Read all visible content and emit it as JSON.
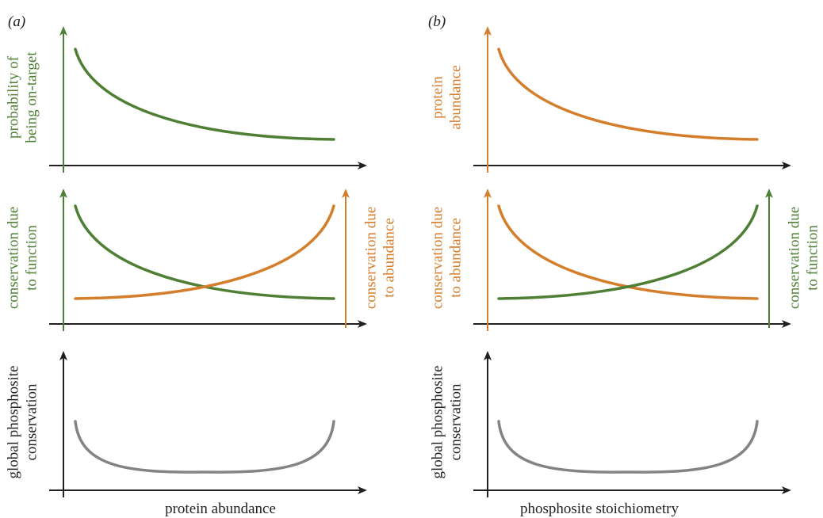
{
  "colors": {
    "green": "#4e7f35",
    "orange": "#d47e2c",
    "gray": "#838383",
    "black": "#231f20"
  },
  "panels": [
    {
      "id": "a",
      "label": "(a)",
      "rows": [
        {
          "y_left_lines": [
            "probability of",
            "being on-target"
          ],
          "y_left_color": "green",
          "curves": [
            {
              "shape": "decreasing",
              "color": "green"
            }
          ]
        },
        {
          "y_left_lines": [
            "conservation due",
            "to function"
          ],
          "y_left_color": "green",
          "y_right_lines": [
            "conservation due",
            "to abundance"
          ],
          "y_right_color": "orange",
          "curves": [
            {
              "shape": "decreasing",
              "color": "green"
            },
            {
              "shape": "increasing",
              "color": "orange"
            }
          ]
        },
        {
          "y_left_lines": [
            "global phosphosite",
            "conservation"
          ],
          "y_left_color": "black",
          "curves": [
            {
              "shape": "u",
              "color": "gray"
            }
          ]
        }
      ],
      "x_label": "protein abundance"
    },
    {
      "id": "b",
      "label": "(b)",
      "rows": [
        {
          "y_left_lines": [
            "protein",
            "abundance"
          ],
          "y_left_color": "orange",
          "curves": [
            {
              "shape": "decreasing",
              "color": "orange"
            }
          ]
        },
        {
          "y_left_lines": [
            "conservation due",
            "to abundance"
          ],
          "y_left_color": "orange",
          "y_right_lines": [
            "conservation due",
            "to function"
          ],
          "y_right_color": "green",
          "curves": [
            {
              "shape": "decreasing",
              "color": "orange"
            },
            {
              "shape": "increasing",
              "color": "green"
            }
          ]
        },
        {
          "y_left_lines": [
            "global phosphosite",
            "conservation"
          ],
          "y_left_color": "black",
          "curves": [
            {
              "shape": "u",
              "color": "gray"
            }
          ]
        }
      ],
      "x_label": "phosphosite stoichiometry"
    }
  ]
}
